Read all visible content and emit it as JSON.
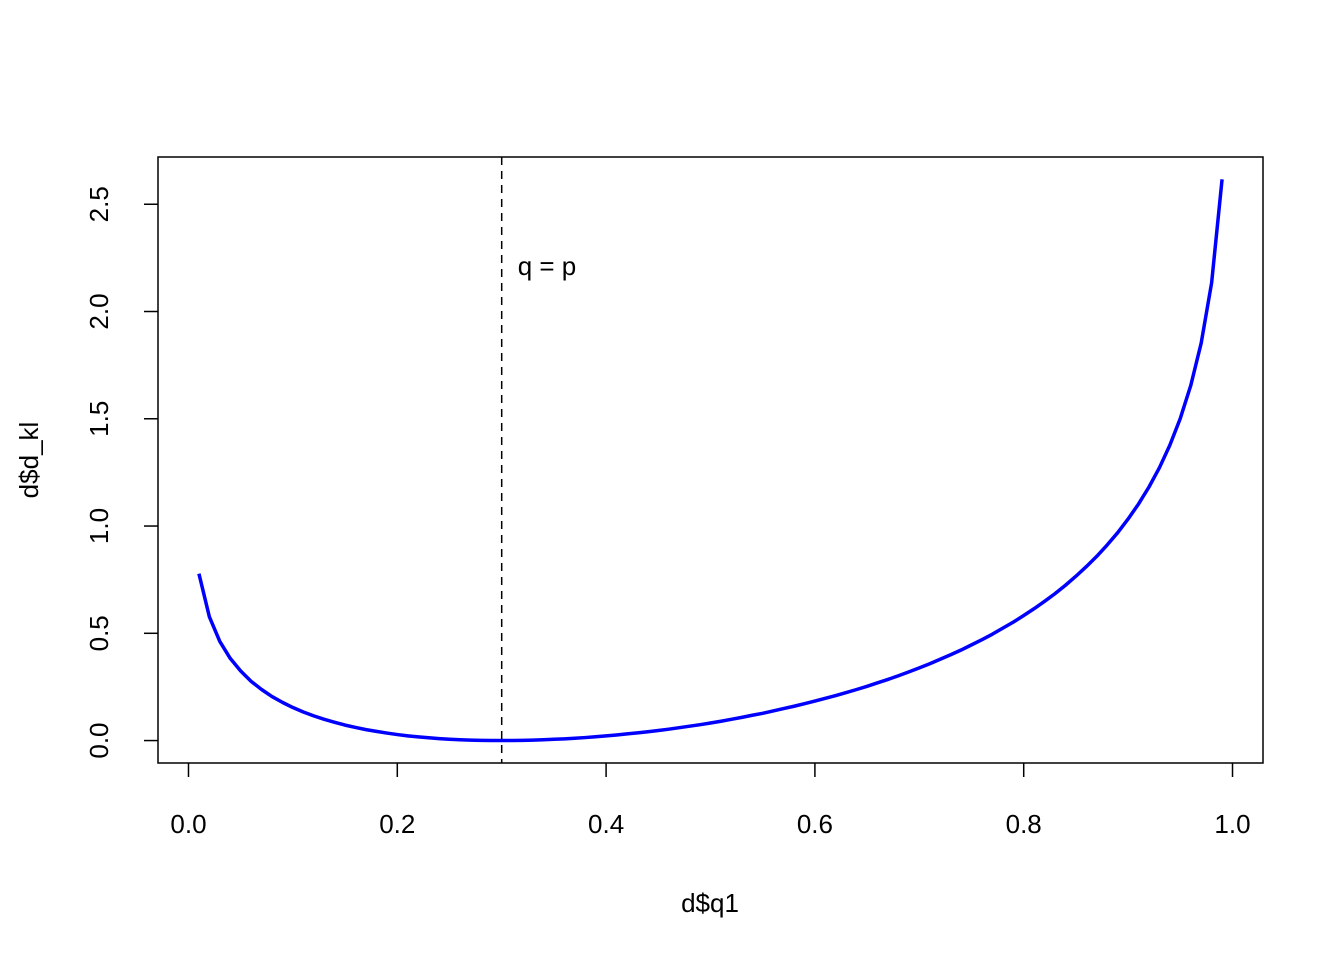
{
  "chart_data": {
    "type": "line",
    "xlabel": "d$q1",
    "ylabel": "d$d_kl",
    "annotation": "q = p",
    "vline": 0.3,
    "color": "#0000ff",
    "x": [
      0.01,
      0.02,
      0.03,
      0.04,
      0.05,
      0.06,
      0.07,
      0.08,
      0.09,
      0.1,
      0.11,
      0.12,
      0.13,
      0.14,
      0.15,
      0.16,
      0.17,
      0.18,
      0.19,
      0.2,
      0.21,
      0.22,
      0.23,
      0.24,
      0.25,
      0.26,
      0.27,
      0.28,
      0.29,
      0.3,
      0.31,
      0.32,
      0.33,
      0.34,
      0.35,
      0.36,
      0.37,
      0.38,
      0.39,
      0.4,
      0.41,
      0.42,
      0.43,
      0.44,
      0.45,
      0.46,
      0.47,
      0.48,
      0.49,
      0.5,
      0.51,
      0.52,
      0.53,
      0.54,
      0.55,
      0.56,
      0.57,
      0.58,
      0.59,
      0.6,
      0.61,
      0.62,
      0.63,
      0.64,
      0.65,
      0.66,
      0.67,
      0.68,
      0.69,
      0.7,
      0.71,
      0.72,
      0.73,
      0.74,
      0.75,
      0.76,
      0.77,
      0.78,
      0.79,
      0.8,
      0.81,
      0.82,
      0.83,
      0.84,
      0.85,
      0.86,
      0.87,
      0.88,
      0.89,
      0.9,
      0.91,
      0.92,
      0.93,
      0.94,
      0.95,
      0.96,
      0.97,
      0.98,
      0.99
    ],
    "values": [
      0.778,
      0.577,
      0.462,
      0.383,
      0.324,
      0.276,
      0.238,
      0.205,
      0.178,
      0.154,
      0.133,
      0.115,
      0.099,
      0.085,
      0.072,
      0.061,
      0.051,
      0.043,
      0.035,
      0.028,
      0.022,
      0.017,
      0.013,
      0.009,
      0.006,
      0.004,
      0.002,
      0.001,
      0.0,
      0.0,
      0.0,
      0.001,
      0.002,
      0.004,
      0.006,
      0.008,
      0.011,
      0.014,
      0.018,
      0.022,
      0.026,
      0.031,
      0.036,
      0.041,
      0.047,
      0.053,
      0.06,
      0.067,
      0.074,
      0.082,
      0.09,
      0.099,
      0.108,
      0.118,
      0.127,
      0.138,
      0.149,
      0.16,
      0.172,
      0.184,
      0.197,
      0.21,
      0.224,
      0.238,
      0.253,
      0.269,
      0.285,
      0.302,
      0.32,
      0.339,
      0.358,
      0.379,
      0.4,
      0.422,
      0.446,
      0.47,
      0.496,
      0.524,
      0.552,
      0.583,
      0.615,
      0.649,
      0.685,
      0.724,
      0.766,
      0.811,
      0.859,
      0.912,
      0.969,
      1.033,
      1.103,
      1.182,
      1.272,
      1.377,
      1.502,
      1.655,
      1.853,
      2.134,
      2.616
    ],
    "xlim": [
      -0.0292,
      1.0292
    ],
    "ylim": [
      -0.1046,
      2.7202
    ],
    "xticks": [
      {
        "value": 0,
        "label": "0.0"
      },
      0.2,
      0.4,
      0.6,
      0.8,
      {
        "value": 1,
        "label": "1.0"
      }
    ],
    "yticks": [
      {
        "value": 0,
        "label": "0.0"
      },
      0.5,
      {
        "value": 1,
        "label": "1.0"
      },
      1.5,
      {
        "value": 2,
        "label": "2.0"
      },
      2.5
    ]
  }
}
